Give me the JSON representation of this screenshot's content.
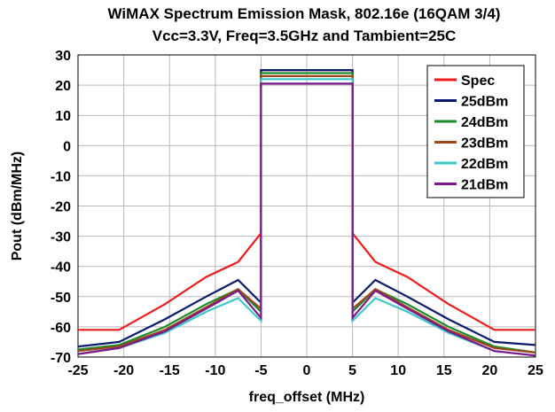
{
  "chart_data": {
    "type": "line",
    "title": "WiMAX Spectrum Emission Mask, 802.16e (16QAM 3/4)",
    "subtitle": "Vcc=3.3V, Freq=3.5GHz and Tambient=25C",
    "xlabel": "freq_offset (MHz)",
    "ylabel": "Pout (dBm/MHz)",
    "xlim": [
      -25,
      25
    ],
    "ylim": [
      -70,
      30
    ],
    "x_ticks": [
      -25,
      -20,
      -15,
      -10,
      -5,
      0,
      5,
      10,
      15,
      20,
      25
    ],
    "y_ticks": [
      30,
      20,
      10,
      0,
      -10,
      -20,
      -30,
      -40,
      -50,
      -60,
      -70
    ],
    "grid": true,
    "legend_position": "top-right",
    "series": [
      {
        "name": "Spec",
        "color": "#ee1c1c",
        "x": [
          -25,
          -20.5,
          -15.5,
          -11,
          -7.5,
          -5,
          -5,
          5,
          5,
          7.5,
          11,
          15.5,
          20.5,
          25
        ],
        "y": [
          -61,
          -61,
          -52.5,
          -43.5,
          -38.5,
          -29,
          25,
          25,
          -29,
          -38.5,
          -43.5,
          -52.5,
          -61,
          -61
        ]
      },
      {
        "name": "25dBm",
        "color": "#0a1a6e",
        "x": [
          -25,
          -20.5,
          -15.5,
          -11,
          -7.5,
          -5,
          -5,
          5,
          5,
          7.5,
          11,
          15.5,
          20.5,
          25
        ],
        "y": [
          -66.5,
          -65,
          -57.5,
          -50,
          -44.5,
          -52,
          25,
          25,
          -52,
          -44.5,
          -50,
          -57.5,
          -65,
          -66
        ]
      },
      {
        "name": "24dBm",
        "color": "#1a8a2a",
        "x": [
          -25,
          -20.5,
          -15.5,
          -11,
          -7.5,
          -5,
          -5,
          5,
          5,
          7.5,
          11,
          15.5,
          20.5,
          25
        ],
        "y": [
          -67.5,
          -66,
          -60,
          -52.5,
          -47.5,
          -55,
          24,
          24,
          -55,
          -47.5,
          -52.5,
          -60,
          -66.5,
          -68.5
        ]
      },
      {
        "name": "23dBm",
        "color": "#a0461a",
        "x": [
          -25,
          -20.5,
          -15.5,
          -11,
          -7.5,
          -5,
          -5,
          5,
          5,
          7.5,
          11,
          15.5,
          20.5,
          25
        ],
        "y": [
          -68,
          -66.5,
          -61,
          -53.5,
          -47.5,
          -54,
          23,
          23,
          -54,
          -47.5,
          -53.5,
          -61,
          -67,
          -68.5
        ]
      },
      {
        "name": "22dBm",
        "color": "#3cc8c8",
        "x": [
          -25,
          -20.5,
          -15.5,
          -11,
          -7.5,
          -5,
          -5,
          5,
          5,
          7.5,
          11,
          15.5,
          20.5,
          25
        ],
        "y": [
          -69,
          -67,
          -62,
          -55,
          -50.5,
          -58,
          22,
          22,
          -58,
          -50.5,
          -55,
          -62,
          -68,
          -69.5
        ]
      },
      {
        "name": "21dBm",
        "color": "#7a1a8a",
        "x": [
          -25,
          -20.5,
          -15.5,
          -11,
          -7.5,
          -5,
          -5,
          5,
          5,
          7.5,
          11,
          15.5,
          20.5,
          25
        ],
        "y": [
          -69,
          -67,
          -61.5,
          -54,
          -48,
          -57,
          20.5,
          20.5,
          -57,
          -48,
          -54,
          -61.5,
          -68,
          -69.5
        ]
      }
    ]
  }
}
